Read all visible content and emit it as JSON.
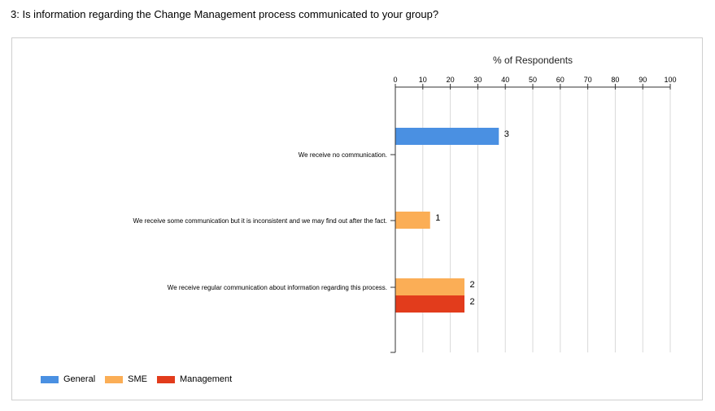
{
  "question": "3: Is information regarding the Change Management process communicated to your group?",
  "chart_data": {
    "type": "bar",
    "orientation": "horizontal",
    "title": "% of Respondents",
    "xlim": [
      0,
      100
    ],
    "xticks": [
      "0",
      "10",
      "20",
      "30",
      "40",
      "50",
      "60",
      "70",
      "80",
      "90",
      "100"
    ],
    "categories": [
      "We receive no communication.",
      "We receive some communication but it is inconsistent and we may find out after the fact.",
      "We receive regular communication about information regarding this process."
    ],
    "series": [
      {
        "name": "General",
        "color": "#4a90e2",
        "values": [
          37.5,
          null,
          null
        ],
        "labels": [
          "3",
          null,
          null
        ]
      },
      {
        "name": "SME",
        "color": "#fbae56",
        "values": [
          null,
          12.5,
          25
        ],
        "labels": [
          null,
          "1",
          "2"
        ]
      },
      {
        "name": "Management",
        "color": "#e23c1c",
        "values": [
          null,
          null,
          25
        ],
        "labels": [
          null,
          null,
          "2"
        ]
      }
    ],
    "grid": true,
    "legend_position": "bottom-left"
  }
}
